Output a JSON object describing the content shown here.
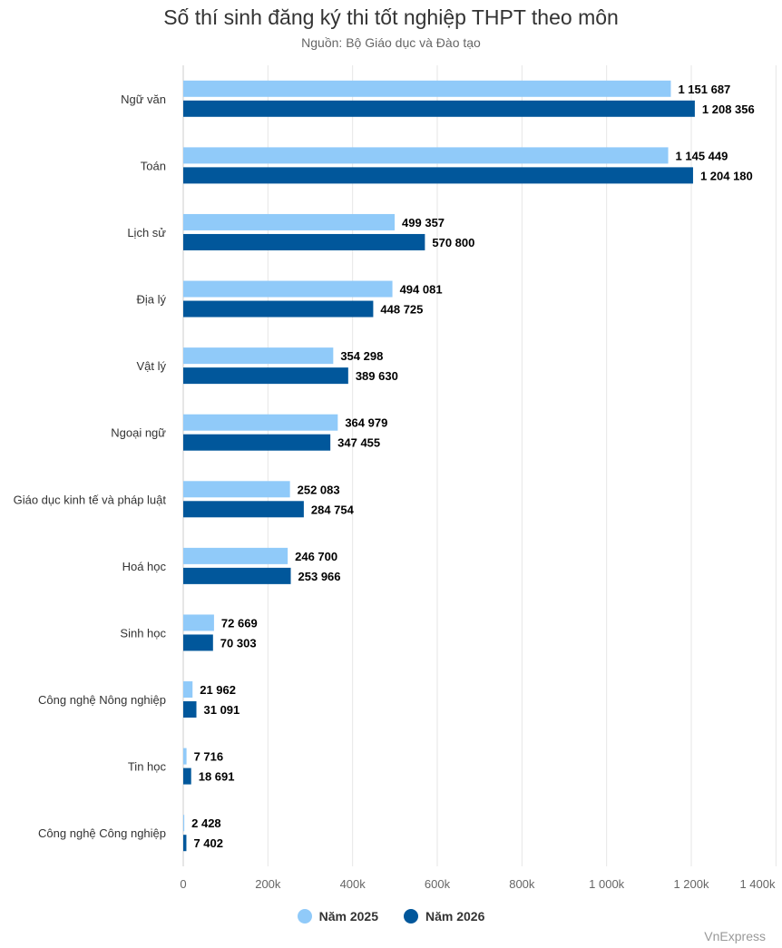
{
  "header": {
    "title": "Số thí sinh đăng ký thi tốt nghiệp THPT theo môn",
    "subtitle": "Nguồn: Bộ Giáo dục và Đào tạo"
  },
  "credit": "VnExpress",
  "chart_data": {
    "type": "bar",
    "orientation": "horizontal",
    "title": "Số thí sinh đăng ký thi tốt nghiệp THPT theo môn",
    "subtitle": "Nguồn: Bộ Giáo dục và Đào tạo",
    "categories": [
      "Ngữ văn",
      "Toán",
      "Lịch sử",
      "Địa lý",
      "Vật lý",
      "Ngoại ngữ",
      "Giáo dục kinh tế và pháp luật",
      "Hoá học",
      "Sinh học",
      "Công nghệ Nông nghiệp",
      "Tin học",
      "Công nghệ Công nghiệp"
    ],
    "series": [
      {
        "name": "Năm 2025",
        "color": "#90caf9",
        "values": [
          1151687,
          1145449,
          499357,
          494081,
          354298,
          364979,
          252083,
          246700,
          72669,
          21962,
          7716,
          2428
        ],
        "labels": [
          "1 151 687",
          "1 145 449",
          "499 357",
          "494 081",
          "354 298",
          "364 979",
          "252 083",
          "246 700",
          "72 669",
          "21 962",
          "7 716",
          "2 428"
        ]
      },
      {
        "name": "Năm 2026",
        "color": "#01579b",
        "values": [
          1208356,
          1204180,
          570800,
          448725,
          389630,
          347455,
          284754,
          253966,
          70303,
          31091,
          18691,
          7402
        ],
        "labels": [
          "1 208 356",
          "1 204 180",
          "570 800",
          "448 725",
          "389 630",
          "347 455",
          "284 754",
          "253 966",
          "70 303",
          "31 091",
          "18 691",
          "7 402"
        ]
      }
    ],
    "xlim": [
      0,
      1400000
    ],
    "ticks": [
      0,
      200000,
      400000,
      600000,
      800000,
      1000000,
      1200000,
      1400000
    ],
    "tick_labels": [
      "0",
      "200k",
      "400k",
      "600k",
      "800k",
      "1 000k",
      "1 200k",
      "1 400k"
    ],
    "grid": true,
    "legend_position": "bottom-center"
  }
}
